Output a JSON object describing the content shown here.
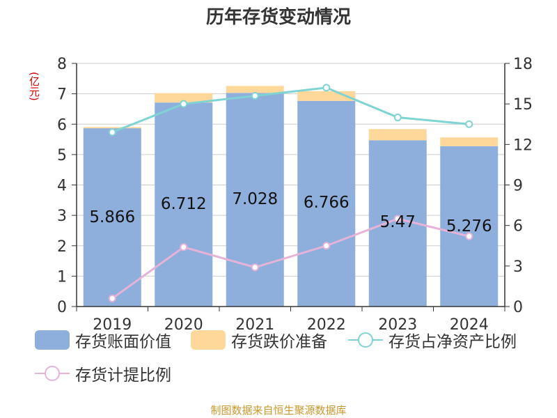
{
  "title": "历年存货变动情况",
  "left_axis_unit": "(亿元)",
  "source": "制图数据来自恒生聚源数据库",
  "colors": {
    "book_value": "#8eaedb",
    "impairment": "#fdd89a",
    "net_asset_ratio": "#7fd3d3",
    "provision_ratio": "#e6b3d8",
    "axis": "#333333",
    "grid": "#cccccc"
  },
  "chart_data": {
    "type": "bar",
    "stacked": true,
    "categories": [
      "2019",
      "2020",
      "2021",
      "2022",
      "2023",
      "2024"
    ],
    "series": [
      {
        "name": "存货账面价值",
        "kind": "bar",
        "axis": "left",
        "values": [
          5.866,
          6.712,
          7.028,
          6.766,
          5.47,
          5.276
        ],
        "labels": [
          "5.866",
          "6.712",
          "7.028",
          "6.766",
          "5.47",
          "5.276"
        ]
      },
      {
        "name": "存货跌价准备",
        "kind": "bar",
        "axis": "left",
        "values": [
          0.04,
          0.31,
          0.23,
          0.32,
          0.37,
          0.29
        ]
      },
      {
        "name": "存货占净资产比例",
        "kind": "line",
        "axis": "right",
        "values": [
          12.9,
          15.0,
          15.6,
          16.2,
          14.0,
          13.5
        ]
      },
      {
        "name": "存货计提比例",
        "kind": "line",
        "axis": "right",
        "values": [
          0.6,
          4.4,
          2.9,
          4.5,
          6.5,
          5.2
        ]
      }
    ],
    "y_left": {
      "min": 0,
      "max": 8,
      "ticks": [
        0,
        1,
        2,
        3,
        4,
        5,
        6,
        7,
        8
      ]
    },
    "y_right": {
      "min": 0,
      "max": 18,
      "ticks": [
        0,
        3,
        6,
        9,
        12,
        15,
        18
      ]
    },
    "grid": true,
    "legend_position": "bottom"
  },
  "legend": [
    {
      "label": "存货账面价值",
      "shape": "box",
      "color": "#8eaedb"
    },
    {
      "label": "存货跌价准备",
      "shape": "box",
      "color": "#fdd89a"
    },
    {
      "label": "存货占净资产比例",
      "shape": "line",
      "color": "#7fd3d3"
    },
    {
      "label": "存货计提比例",
      "shape": "line",
      "color": "#e6b3d8"
    }
  ]
}
